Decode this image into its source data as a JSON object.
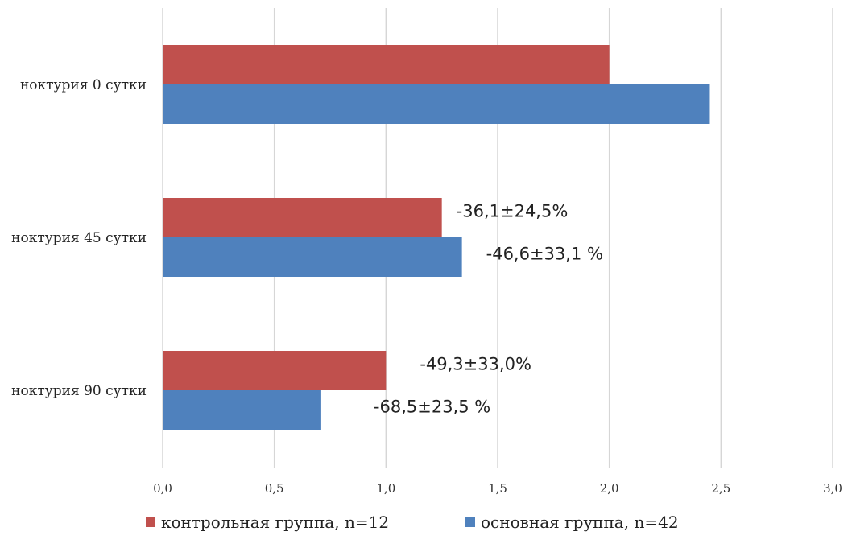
{
  "chart_data": {
    "type": "bar",
    "orientation": "horizontal",
    "categories": [
      "ноктурия 0 сутки",
      "ноктурия 45 сутки",
      "ноктурия 90 сутки"
    ],
    "series": [
      {
        "name": "контрольная группа, n=12",
        "color": "#c0504d",
        "values": [
          2.0,
          1.25,
          1.0
        ]
      },
      {
        "name": "основная группа, n=42",
        "color": "#4f81bd",
        "values": [
          2.45,
          1.34,
          0.71
        ]
      }
    ],
    "data_labels": [
      {
        "category": "ноктурия 45 сутки",
        "series": "контрольная группа, n=12",
        "text": "-36,1±24,5%"
      },
      {
        "category": "ноктурия 45 сутки",
        "series": "основная группа, n=42",
        "text": "-46,6±33,1 %"
      },
      {
        "category": "ноктурия 90 сутки",
        "series": "контрольная группа, n=12",
        "text": "-49,3±33,0%"
      },
      {
        "category": "ноктурия 90 сутки",
        "series": "основная группа, n=42",
        "text": "-68,5±23,5 %"
      }
    ],
    "xticks": [
      "0,0",
      "0,5",
      "1,0",
      "1,5",
      "2,0",
      "2,5",
      "3,0"
    ],
    "xlim": [
      0,
      3
    ],
    "grid": true,
    "legend": "bottom",
    "title": "",
    "xlabel": "",
    "ylabel": ""
  }
}
